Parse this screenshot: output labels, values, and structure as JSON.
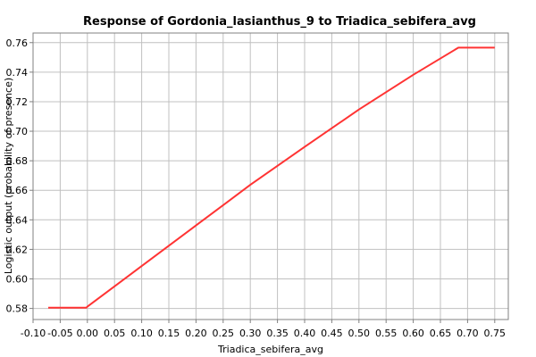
{
  "chart_data": {
    "type": "line",
    "title": "Response of Gordonia_lasianthus_9 to Triadica_sebifera_avg",
    "xlabel": "Triadica_sebifera_avg",
    "ylabel": "Logistic output (probability of presence)",
    "xlim": [
      -0.1,
      0.775
    ],
    "ylim": [
      0.5725,
      0.7665
    ],
    "xticks": [
      -0.1,
      -0.05,
      0.0,
      0.05,
      0.1,
      0.15,
      0.2,
      0.25,
      0.3,
      0.35,
      0.4,
      0.45,
      0.5,
      0.55,
      0.6,
      0.65,
      0.7,
      0.75
    ],
    "xtick_labels": [
      "-0.10",
      "-0.05",
      "0.00",
      "0.05",
      "0.10",
      "0.15",
      "0.20",
      "0.25",
      "0.30",
      "0.35",
      "0.40",
      "0.45",
      "0.50",
      "0.55",
      "0.60",
      "0.65",
      "0.70",
      "0.75"
    ],
    "yticks": [
      0.58,
      0.6,
      0.62,
      0.64,
      0.66,
      0.68,
      0.7,
      0.72,
      0.74,
      0.76
    ],
    "ytick_labels": [
      "0.58",
      "0.60",
      "0.62",
      "0.64",
      "0.66",
      "0.68",
      "0.70",
      "0.72",
      "0.74",
      "0.76"
    ],
    "grid": true,
    "legend": "none",
    "series": [
      {
        "color": "#ff3333",
        "x": [
          -0.072,
          -0.002,
          0.0,
          0.1,
          0.2,
          0.3,
          0.4,
          0.5,
          0.6,
          0.683,
          0.75
        ],
        "y": [
          0.5805,
          0.5805,
          0.5812,
          0.6087,
          0.6362,
          0.6637,
          0.6894,
          0.7147,
          0.7382,
          0.7566,
          0.7566
        ]
      }
    ]
  }
}
